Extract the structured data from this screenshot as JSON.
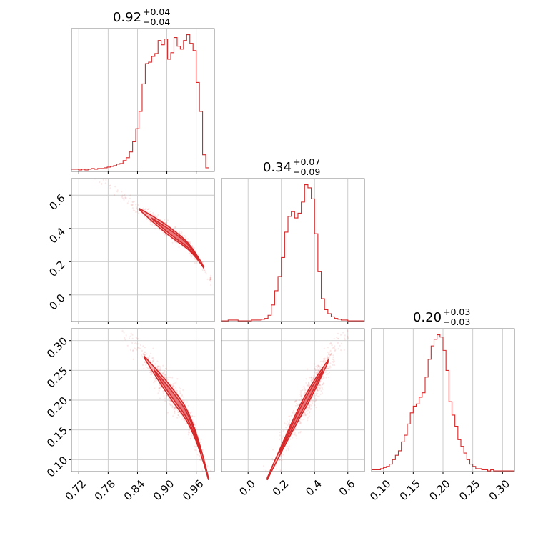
{
  "chart_data": {
    "type": "corner",
    "colors": {
      "line": "#d62728",
      "fill_outer": "#f5b5b7",
      "fill_inner": "#e8777b",
      "grid": "#c8c8c8",
      "frame": "#808080"
    },
    "grid": true,
    "parameters": [
      {
        "title_main": "0.92",
        "title_sup": "+0.04",
        "title_sub": "−0.04",
        "range": [
          0.705,
          0.997
        ],
        "ticks": [
          0.72,
          0.78,
          0.84,
          0.9,
          0.96
        ],
        "tick_labels": [
          "0.72",
          "0.78",
          "0.84",
          "0.90",
          "0.96"
        ],
        "hist": {
          "start": 0.7,
          "step": 0.0065,
          "counts": [
            2,
            2,
            2,
            1,
            2,
            1,
            2,
            3,
            2,
            3,
            3,
            4,
            5,
            6,
            7,
            9,
            10,
            14,
            18,
            26,
            40,
            58,
            82,
            120,
            148,
            150,
            158,
            162,
            180,
            174,
            182,
            154,
            163,
            184,
            172,
            168,
            180,
            188,
            176,
            166,
            122,
            82,
            22,
            4
          ]
        }
      },
      {
        "title_main": "0.34",
        "title_sup": "+0.07",
        "title_sub": "−0.09",
        "range": [
          -0.16,
          0.7
        ],
        "ticks": [
          0.0,
          0.2,
          0.4,
          0.6
        ],
        "tick_labels": [
          "0.0",
          "0.2",
          "0.4",
          "0.6"
        ],
        "hist": {
          "start": -0.16,
          "step": 0.02,
          "counts": [
            0,
            0,
            1,
            1,
            1,
            0,
            0,
            0,
            0,
            1,
            1,
            1,
            2,
            3,
            7,
            20,
            38,
            56,
            80,
            112,
            132,
            138,
            130,
            136,
            150,
            172,
            168,
            154,
            110,
            62,
            28,
            14,
            9,
            5,
            3,
            2,
            1,
            1,
            0,
            0,
            0,
            0,
            0
          ]
        }
      },
      {
        "title_main": "0.20",
        "title_sup": "+0.03",
        "title_sub": "−0.03",
        "range": [
          0.08,
          0.32
        ],
        "ticks": [
          0.1,
          0.15,
          0.2,
          0.25,
          0.3
        ],
        "tick_labels": [
          "0.10",
          "0.15",
          "0.20",
          "0.25",
          "0.30"
        ],
        "hist": {
          "start": 0.08,
          "step": 0.005,
          "counts": [
            1,
            1,
            1,
            2,
            3,
            4,
            6,
            10,
            14,
            18,
            26,
            32,
            42,
            52,
            58,
            60,
            66,
            70,
            84,
            100,
            112,
            118,
            122,
            120,
            108,
            90,
            62,
            50,
            40,
            28,
            22,
            16,
            10,
            6,
            4,
            2,
            2,
            1,
            1,
            0,
            1,
            0,
            0,
            0,
            0,
            0,
            0,
            0
          ]
        }
      }
    ],
    "pair_ranges": {
      "y_axis_p2_ticks": [
        0.0,
        0.2,
        0.4,
        0.6
      ],
      "y_axis_p2_labels": [
        "0.0",
        "0.2",
        "0.4",
        "0.6"
      ],
      "y_axis_p3_ticks": [
        0.1,
        0.15,
        0.2,
        0.25,
        0.3
      ],
      "y_axis_p3_labels": [
        "0.10",
        "0.15",
        "0.20",
        "0.25",
        "0.30"
      ]
    }
  }
}
